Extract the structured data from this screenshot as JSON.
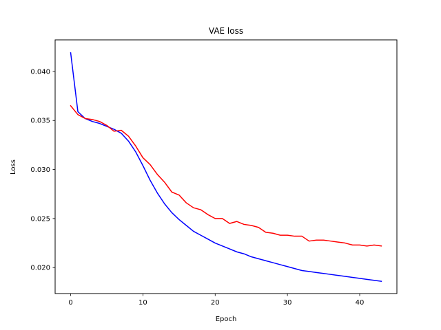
{
  "chart_data": {
    "type": "line",
    "title": "VAE loss",
    "xlabel": "Epoch",
    "ylabel": "Loss",
    "xlim": [
      -2.15,
      45.15
    ],
    "ylim": [
      0.01735,
      0.04322
    ],
    "xticks": [
      0,
      10,
      20,
      30,
      40
    ],
    "xtick_labels": [
      "0",
      "10",
      "20",
      "30",
      "40"
    ],
    "yticks": [
      0.02,
      0.025,
      0.03,
      0.035,
      0.04
    ],
    "ytick_labels": [
      "0.020",
      "0.025",
      "0.030",
      "0.035",
      "0.040"
    ],
    "grid": false,
    "legend": null,
    "x": [
      0,
      1,
      2,
      3,
      4,
      5,
      6,
      7,
      8,
      9,
      10,
      11,
      12,
      13,
      14,
      15,
      16,
      17,
      18,
      19,
      20,
      21,
      22,
      23,
      24,
      25,
      26,
      27,
      28,
      29,
      30,
      31,
      32,
      33,
      34,
      35,
      36,
      37,
      38,
      39,
      40,
      41,
      42,
      43
    ],
    "series": [
      {
        "color": "#0000ff",
        "values": [
          0.0419,
          0.0359,
          0.0352,
          0.0349,
          0.0347,
          0.0344,
          0.0341,
          0.0337,
          0.0329,
          0.0318,
          0.0304,
          0.0289,
          0.0276,
          0.0265,
          0.0256,
          0.0249,
          0.0243,
          0.0237,
          0.0233,
          0.0229,
          0.0225,
          0.0222,
          0.0219,
          0.0216,
          0.0214,
          0.0211,
          0.0209,
          0.0207,
          0.0205,
          0.0203,
          0.0201,
          0.0199,
          0.0197,
          0.0196,
          0.0195,
          0.0194,
          0.0193,
          0.0192,
          0.0191,
          0.019,
          0.0189,
          0.0188,
          0.0187,
          0.0186
        ]
      },
      {
        "color": "#ff0000",
        "values": [
          0.0365,
          0.0356,
          0.0352,
          0.0351,
          0.0349,
          0.0345,
          0.0339,
          0.034,
          0.0334,
          0.0324,
          0.0312,
          0.0305,
          0.0295,
          0.0287,
          0.0277,
          0.0274,
          0.0266,
          0.0261,
          0.0259,
          0.0254,
          0.025,
          0.025,
          0.0245,
          0.0247,
          0.0244,
          0.0243,
          0.0241,
          0.0236,
          0.0235,
          0.0233,
          0.0233,
          0.0232,
          0.0232,
          0.0227,
          0.0228,
          0.0228,
          0.0227,
          0.0226,
          0.0225,
          0.0223,
          0.0223,
          0.0222,
          0.0223,
          0.0222
        ]
      }
    ]
  }
}
